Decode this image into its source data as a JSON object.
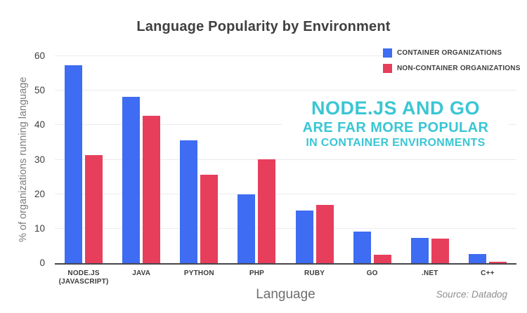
{
  "chart_data": {
    "type": "bar",
    "title": "Language Popularity by Environment",
    "xlabel": "Language",
    "ylabel": "% of organizations running language",
    "ylim": [
      0,
      60
    ],
    "yticks": [
      0,
      10,
      20,
      30,
      40,
      50,
      60
    ],
    "grid": true,
    "legend_position": "top-right",
    "categories": [
      [
        "NODE.JS",
        "(JAVASCRIPT)"
      ],
      [
        "JAVA"
      ],
      [
        "PYTHON"
      ],
      [
        "PHP"
      ],
      [
        "RUBY"
      ],
      [
        "GO"
      ],
      [
        ".NET"
      ],
      [
        "C++"
      ]
    ],
    "series": [
      {
        "name": "CONTAINER ORGANIZATIONS",
        "color": "#3E6CF2",
        "values": [
          57.4,
          48.3,
          35.6,
          19.9,
          15.3,
          9.2,
          7.4,
          2.6
        ]
      },
      {
        "name": "NON-CONTAINER ORGANIZATIONS",
        "color": "#E73E5C",
        "values": [
          31.3,
          42.8,
          25.6,
          30.2,
          16.8,
          2.5,
          7.1,
          0.4
        ]
      }
    ],
    "annotation": {
      "lines": [
        "NODE.JS AND GO",
        "ARE FAR MORE POPULAR",
        "IN CONTAINER ENVIRONMENTS"
      ],
      "color": "#3AC6D4"
    },
    "source": "Source: Datadog"
  },
  "colors": {
    "container_blue": "#3E6CF2",
    "non_container_red": "#E73E5C",
    "annotation_cyan": "#3AC6D4",
    "gridline": "#ececf0",
    "axis_line": "#47474d",
    "title_text": "#3f3f3f"
  }
}
